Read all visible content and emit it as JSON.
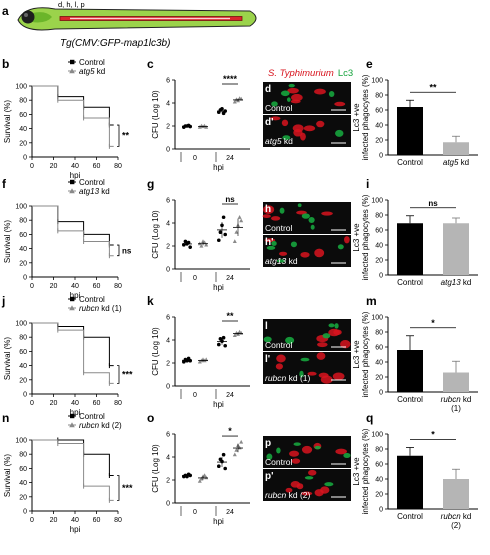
{
  "panel_letters": {
    "a": "a",
    "b": "b",
    "c": "c",
    "d": "d",
    "dp": "d'",
    "e": "e",
    "f": "f",
    "g": "g",
    "h": "h",
    "hp": "h'",
    "i": "i",
    "j": "j",
    "k": "k",
    "l": "l",
    "lp": "l'",
    "m": "m",
    "n": "n",
    "o": "o",
    "p": "p",
    "pp": "p'",
    "q": "q"
  },
  "header": {
    "fish_label": "d, h, l, p",
    "transgene": "Tg(CMV:GFP-map1lc3b)"
  },
  "microscopy": {
    "channel_red": "S. Typhimurium",
    "channel_green": "Lc3",
    "rows": [
      {
        "top": "Control",
        "bottom": "atg5 kd"
      },
      {
        "top": "Control",
        "bottom": "atg13 kd"
      },
      {
        "top": "Control",
        "bottom": "rubcn kd (1)"
      },
      {
        "top": "Control",
        "bottom": "rubcn kd (2)"
      }
    ]
  },
  "axes": {
    "survival_y": "Survival (%)",
    "survival_x": "hpi",
    "cfu_y": "CFU (Log 10)",
    "cfu_x": "hpi",
    "lc3_y1": "Lc3 +ve",
    "lc3_y2": "infected phagocytes (%)"
  },
  "colors": {
    "control": "#000000",
    "kd": "#8a8a8a",
    "red": "#d8141e",
    "green": "#16a43d",
    "bar_control": "#000000",
    "bar_kd": "#b5b5b5"
  },
  "chart_data": [
    {
      "panel": "b",
      "type": "line",
      "subtype": "survival",
      "ylim": [
        0,
        100
      ],
      "yticks": [
        0,
        20,
        40,
        60,
        80,
        100
      ],
      "xlim": [
        0,
        80
      ],
      "xticks": [
        0,
        20,
        40,
        60,
        80
      ],
      "xlabel": "hpi",
      "ylabel": "Survival (%)",
      "series": [
        {
          "name": "Control",
          "steps": [
            [
              0,
              100
            ],
            [
              24,
              85
            ],
            [
              48,
              70
            ],
            [
              72,
              45
            ],
            [
              76,
              45
            ]
          ]
        },
        {
          "name": "atg5 kd",
          "steps": [
            [
              0,
              100
            ],
            [
              24,
              80
            ],
            [
              48,
              55
            ],
            [
              72,
              15
            ],
            [
              76,
              15
            ]
          ]
        }
      ],
      "significance": "**"
    },
    {
      "panel": "c",
      "type": "scatter",
      "subtype": "cfu",
      "ylim": [
        0,
        6
      ],
      "yticks": [
        0,
        2,
        4,
        6
      ],
      "ylabel": "CFU (Log 10)",
      "xlabel": "hpi",
      "groups": [
        "0",
        "24"
      ],
      "points": {
        "0": {
          "control": [
            1.9,
            2.0,
            2.0,
            2.05,
            1.95
          ],
          "kd": [
            1.9,
            2.0,
            1.95,
            2.0,
            1.9
          ]
        },
        "24": {
          "control": [
            3.2,
            3.4,
            3.5,
            3.1,
            3.3
          ],
          "kd": [
            4.1,
            4.3,
            4.2,
            4.4,
            4.35
          ]
        }
      },
      "significance": "****"
    },
    {
      "panel": "e",
      "type": "bar",
      "categories": [
        "Control",
        "atg5 kd"
      ],
      "values": [
        64,
        17
      ],
      "errors": [
        9,
        8
      ],
      "ylim": [
        0,
        100
      ],
      "yticks": [
        0,
        20,
        40,
        60,
        80,
        100
      ],
      "ylabel": "Lc3 +ve infected phagocytes (%)",
      "significance": "**"
    },
    {
      "panel": "f",
      "type": "line",
      "subtype": "survival",
      "ylim": [
        0,
        100
      ],
      "yticks": [
        0,
        20,
        40,
        60,
        80,
        100
      ],
      "xlim": [
        0,
        80
      ],
      "xticks": [
        0,
        20,
        40,
        60,
        80
      ],
      "xlabel": "hpi",
      "ylabel": "Survival (%)",
      "series": [
        {
          "name": "Control",
          "steps": [
            [
              0,
              100
            ],
            [
              24,
              78
            ],
            [
              48,
              60
            ],
            [
              72,
              45
            ],
            [
              76,
              45
            ]
          ]
        },
        {
          "name": "atg13 kd",
          "steps": [
            [
              0,
              100
            ],
            [
              24,
              65
            ],
            [
              48,
              50
            ],
            [
              72,
              30
            ],
            [
              76,
              30
            ]
          ]
        }
      ],
      "significance": "ns"
    },
    {
      "panel": "g",
      "type": "scatter",
      "subtype": "cfu",
      "ylim": [
        0,
        6
      ],
      "yticks": [
        0,
        2,
        4,
        6
      ],
      "ylabel": "CFU (Log 10)",
      "xlabel": "hpi",
      "groups": [
        "0",
        "24"
      ],
      "points": {
        "0": {
          "control": [
            2.1,
            2.4,
            2.2,
            2.3,
            1.9
          ],
          "kd": [
            2.2,
            2.0,
            2.4,
            2.3,
            2.1
          ]
        },
        "24": {
          "control": [
            2.5,
            3.2,
            3.8,
            4.5,
            3.0
          ],
          "kd": [
            2.4,
            3.2,
            3.8,
            4.5,
            4.2
          ]
        }
      },
      "significance": "ns"
    },
    {
      "panel": "i",
      "type": "bar",
      "categories": [
        "Control",
        "atg13 kd"
      ],
      "values": [
        69,
        69
      ],
      "errors": [
        10,
        7
      ],
      "ylim": [
        0,
        100
      ],
      "yticks": [
        0,
        20,
        40,
        60,
        80,
        100
      ],
      "ylabel": "Lc3 +ve infected phagocytes (%)",
      "significance": "ns"
    },
    {
      "panel": "j",
      "type": "line",
      "subtype": "survival",
      "ylim": [
        0,
        100
      ],
      "yticks": [
        0,
        20,
        40,
        60,
        80,
        100
      ],
      "xlim": [
        0,
        80
      ],
      "xticks": [
        0,
        20,
        40,
        60,
        80
      ],
      "xlabel": "hpi",
      "ylabel": "Survival (%)",
      "series": [
        {
          "name": "Control",
          "steps": [
            [
              0,
              100
            ],
            [
              24,
              95
            ],
            [
              48,
              80
            ],
            [
              72,
              40
            ],
            [
              76,
              40
            ]
          ]
        },
        {
          "name": "rubcn kd (1)",
          "steps": [
            [
              0,
              100
            ],
            [
              24,
              90
            ],
            [
              48,
              30
            ],
            [
              72,
              15
            ],
            [
              76,
              15
            ]
          ]
        }
      ],
      "significance": "***"
    },
    {
      "panel": "k",
      "type": "scatter",
      "subtype": "cfu",
      "ylim": [
        0,
        6
      ],
      "yticks": [
        0,
        2,
        4,
        6
      ],
      "ylabel": "CFU (Log 10)",
      "xlabel": "hpi",
      "groups": [
        "0",
        "24"
      ],
      "points": {
        "0": {
          "control": [
            2.1,
            2.3,
            2.2,
            2.4,
            2.2
          ],
          "kd": [
            2.1,
            2.2,
            2.3,
            2.2,
            2.3
          ]
        },
        "24": {
          "control": [
            3.6,
            4.1,
            3.9,
            4.2,
            3.5
          ],
          "kd": [
            4.4,
            4.6,
            4.5,
            4.7,
            4.6
          ]
        }
      },
      "significance": "**"
    },
    {
      "panel": "m",
      "type": "bar",
      "categories": [
        "Control",
        "rubcn kd (1)"
      ],
      "values": [
        56,
        26
      ],
      "errors": [
        19,
        15
      ],
      "ylim": [
        0,
        100
      ],
      "yticks": [
        0,
        20,
        40,
        60,
        80,
        100
      ],
      "ylabel": "Lc3 +ve infected phagocytes (%)",
      "significance": "*"
    },
    {
      "panel": "n",
      "type": "line",
      "subtype": "survival",
      "ylim": [
        0,
        100
      ],
      "yticks": [
        0,
        20,
        40,
        60,
        80,
        100
      ],
      "xlim": [
        0,
        80
      ],
      "xticks": [
        0,
        20,
        40,
        60,
        80
      ],
      "xlabel": "hpi",
      "ylabel": "Survival (%)",
      "series": [
        {
          "name": "Control",
          "steps": [
            [
              0,
              100
            ],
            [
              24,
              100
            ],
            [
              48,
              80
            ],
            [
              72,
              50
            ],
            [
              76,
              50
            ]
          ]
        },
        {
          "name": "rubcn kd (2)",
          "steps": [
            [
              0,
              100
            ],
            [
              24,
              95
            ],
            [
              48,
              35
            ],
            [
              72,
              15
            ],
            [
              76,
              15
            ]
          ]
        }
      ],
      "significance": "***"
    },
    {
      "panel": "o",
      "type": "scatter",
      "subtype": "cfu",
      "ylim": [
        0,
        6
      ],
      "yticks": [
        0,
        2,
        4,
        6
      ],
      "ylabel": "CFU (Log 10)",
      "xlabel": "hpi",
      "groups": [
        "0",
        "24"
      ],
      "points": {
        "0": {
          "control": [
            2.3,
            2.4,
            2.3,
            2.5,
            2.4
          ],
          "kd": [
            1.9,
            2.1,
            2.3,
            2.4,
            2.2
          ]
        },
        "24": {
          "control": [
            3.2,
            3.8,
            3.6,
            4.2,
            3.0
          ],
          "kd": [
            4.2,
            4.6,
            5.0,
            4.8,
            5.3
          ]
        }
      },
      "significance": "*"
    },
    {
      "panel": "q",
      "type": "bar",
      "categories": [
        "Control",
        "rubcn kd (2)"
      ],
      "values": [
        71,
        40
      ],
      "errors": [
        11,
        13
      ],
      "ylim": [
        0,
        100
      ],
      "yticks": [
        0,
        20,
        40,
        60,
        80,
        100
      ],
      "ylabel": "Lc3 +ve infected phagocytes (%)",
      "significance": "*"
    }
  ],
  "bar_kd_labels": [
    [
      "atg5 kd"
    ],
    [
      "atg13 kd"
    ],
    [
      "rubcn kd",
      "(1)"
    ],
    [
      "rubcn kd",
      "(2)"
    ]
  ]
}
